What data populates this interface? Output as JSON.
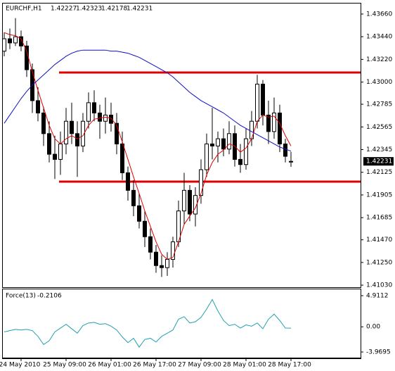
{
  "header": {
    "symbol": "EURCHF,H1"
  },
  "chart_data": [
    {
      "type": "candlestick",
      "categories": [
        null,
        null,
        null,
        "24 May 2010",
        null,
        null,
        null,
        null,
        null,
        null,
        null,
        "25 May 09:00",
        null,
        null,
        null,
        null,
        null,
        null,
        null,
        "26 May 01:00",
        null,
        null,
        null,
        null,
        null,
        null,
        null,
        "26 May 17:00",
        null,
        null,
        null,
        null,
        null,
        null,
        null,
        "27 May 09:00",
        null,
        null,
        null,
        null,
        null,
        null,
        null,
        "28 May 01:00",
        null,
        null,
        null,
        null,
        null,
        null,
        null,
        "28 May 17:00"
      ],
      "open": [
        1.433,
        1.4342,
        1.4338,
        1.4344,
        1.4335,
        1.4312,
        1.4282,
        1.427,
        1.425,
        1.423,
        1.4225,
        1.424,
        1.4262,
        1.425,
        1.4238,
        1.4262,
        1.428,
        1.427,
        1.4262,
        1.4268,
        1.426,
        1.424,
        1.4212,
        1.4195,
        1.418,
        1.4165,
        1.415,
        1.4135,
        1.4122,
        1.412,
        1.4128,
        1.4145,
        1.4175,
        1.4195,
        1.4172,
        1.419,
        1.4215,
        1.424,
        1.4238,
        1.4245,
        1.4235,
        1.425,
        1.4225,
        1.422,
        1.4245,
        1.4262,
        1.4298,
        1.4268,
        1.4252,
        1.427,
        1.424,
        1.42227
      ],
      "high": [
        1.4348,
        1.4352,
        1.4362,
        1.435,
        1.434,
        1.4318,
        1.4295,
        1.4276,
        1.4262,
        1.4248,
        1.4252,
        1.4275,
        1.428,
        1.4262,
        1.427,
        1.429,
        1.4292,
        1.4278,
        1.4285,
        1.428,
        1.427,
        1.4252,
        1.4218,
        1.4205,
        1.4192,
        1.4175,
        1.4158,
        1.4142,
        1.4132,
        1.4135,
        1.415,
        1.4185,
        1.4212,
        1.42,
        1.4198,
        1.4225,
        1.425,
        1.4275,
        1.4252,
        1.4255,
        1.4262,
        1.4258,
        1.424,
        1.4255,
        1.4272,
        1.4307,
        1.4302,
        1.4282,
        1.4285,
        1.4278,
        1.4245,
        1.42323
      ],
      "low": [
        1.4325,
        1.4332,
        1.4335,
        1.433,
        1.4305,
        1.427,
        1.4262,
        1.4238,
        1.4222,
        1.4206,
        1.421,
        1.423,
        1.424,
        1.4208,
        1.4232,
        1.4255,
        1.4262,
        1.4245,
        1.425,
        1.4252,
        1.423,
        1.4205,
        1.4185,
        1.417,
        1.4158,
        1.414,
        1.4128,
        1.4115,
        1.4111,
        1.4112,
        1.412,
        1.414,
        1.4162,
        1.4165,
        1.416,
        1.4182,
        1.4208,
        1.4225,
        1.4222,
        1.4228,
        1.423,
        1.4218,
        1.4212,
        1.4215,
        1.4238,
        1.4255,
        1.4258,
        1.424,
        1.4245,
        1.4232,
        1.4222,
        1.42178
      ],
      "close": [
        1.4342,
        1.4338,
        1.4344,
        1.4335,
        1.4312,
        1.4282,
        1.427,
        1.425,
        1.423,
        1.4225,
        1.424,
        1.4262,
        1.425,
        1.4238,
        1.4262,
        1.428,
        1.427,
        1.4262,
        1.4268,
        1.426,
        1.424,
        1.4212,
        1.4195,
        1.418,
        1.4165,
        1.415,
        1.4135,
        1.4122,
        1.412,
        1.4128,
        1.4145,
        1.4175,
        1.4195,
        1.4172,
        1.419,
        1.4215,
        1.424,
        1.4238,
        1.4245,
        1.4235,
        1.425,
        1.4225,
        1.422,
        1.4245,
        1.4262,
        1.4298,
        1.4268,
        1.4252,
        1.427,
        1.424,
        1.4228,
        1.42231
      ],
      "candle_color": "#000000",
      "series": [
        {
          "color": "#e00000",
          "values": [
            1.4348,
            1.4346,
            1.4345,
            1.4342,
            1.433,
            1.431,
            1.4292,
            1.4275,
            1.4258,
            1.4245,
            1.424,
            1.4245,
            1.4248,
            1.4245,
            1.4248,
            1.4258,
            1.4264,
            1.4265,
            1.4266,
            1.4265,
            1.4258,
            1.4242,
            1.4225,
            1.4208,
            1.4192,
            1.4175,
            1.416,
            1.4145,
            1.4133,
            1.4128,
            1.413,
            1.4145,
            1.4162,
            1.417,
            1.4178,
            1.4192,
            1.421,
            1.4222,
            1.423,
            1.4234,
            1.424,
            1.4238,
            1.4232,
            1.4236,
            1.4245,
            1.4262,
            1.4268,
            1.4266,
            1.4267,
            1.426,
            1.4248,
            1.4238
          ]
        },
        {
          "color": "#1010c0",
          "values": [
            1.426,
            1.4268,
            1.4276,
            1.4284,
            1.4291,
            1.4297,
            1.4302,
            1.4307,
            1.4312,
            1.4317,
            1.4321,
            1.4325,
            1.4328,
            1.433,
            1.4331,
            1.4331,
            1.4331,
            1.4331,
            1.4331,
            1.433,
            1.433,
            1.4329,
            1.4328,
            1.4326,
            1.4324,
            1.4321,
            1.4318,
            1.4315,
            1.4312,
            1.4309,
            1.4305,
            1.43,
            1.4295,
            1.429,
            1.4286,
            1.4282,
            1.4279,
            1.4276,
            1.4273,
            1.427,
            1.4266,
            1.4262,
            1.4258,
            1.4255,
            1.4252,
            1.4249,
            1.4246,
            1.4243,
            1.424,
            1.4237,
            1.4235,
            1.4233
          ]
        }
      ],
      "levels": [
        1.43093,
        1.42034
      ],
      "level_color": "#e00000",
      "ylim": [
        1.4101,
        1.43762
      ],
      "yticks": [
        {
          "value": 1.4366,
          "label": "1.43660"
        },
        {
          "value": 1.4344,
          "label": "1.43440"
        },
        {
          "value": 1.4322,
          "label": "1.43220"
        },
        {
          "value": 1.43,
          "label": "1.43000"
        },
        1.42785,
        1.42565,
        1.42345,
        1.42125,
        1.41905,
        1.41685,
        {
          "value": 1.4147,
          "label": "1.41470"
        },
        {
          "value": 1.4125,
          "label": "1.41250"
        },
        {
          "value": 1.4103,
          "label": "1.41030"
        }
      ]
    },
    {
      "type": "line",
      "title": "Force(13)",
      "color": "#20a0b0",
      "values": [
        -0.8,
        -0.6,
        -0.4,
        -0.5,
        -0.4,
        -0.6,
        -1.5,
        -2.8,
        -2.2,
        -0.8,
        -0.2,
        0.4,
        -0.3,
        -1.0,
        0.2,
        0.6,
        0.7,
        0.4,
        0.5,
        0.1,
        -0.5,
        -1.6,
        -2.5,
        -1.8,
        -3.2,
        -2.0,
        -1.8,
        -2.4,
        -1.5,
        -1.0,
        -0.5,
        1.2,
        1.6,
        0.6,
        0.8,
        1.5,
        2.8,
        4.3,
        2.5,
        1.0,
        0.2,
        0.4,
        -0.2,
        0.3,
        0.1,
        0.6,
        -0.3,
        1.2,
        2.0,
        1.0,
        -0.2,
        -0.2106
      ],
      "ylim": [
        -4.857,
        5.91
      ],
      "yticks": [
        4.9112,
        {
          "value": 0,
          "label": "0.00"
        },
        -3.9695
      ]
    }
  ]
}
